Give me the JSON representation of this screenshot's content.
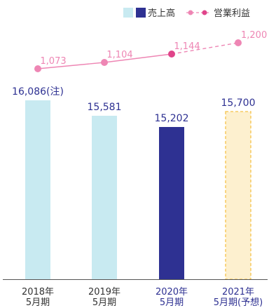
{
  "chart_data": {
    "type": "bar",
    "categories": [
      {
        "line1": "2018年",
        "line2": "5月期"
      },
      {
        "line1": "2019年",
        "line2": "5月期"
      },
      {
        "line1": "2020年",
        "line2": "5月期"
      },
      {
        "line1": "2021年",
        "line2": "5月期(予想)"
      }
    ],
    "legend": {
      "sales": "売上高",
      "profit": "営業利益"
    },
    "series": [
      {
        "name": "売上高",
        "type": "bar",
        "values": [
          16086,
          15581,
          15202,
          15700
        ],
        "labels": [
          "16,086(注)",
          "15,581",
          "15,202",
          "15,700"
        ],
        "styles": [
          "actual-light",
          "actual-light",
          "actual-dark",
          "forecast"
        ]
      },
      {
        "name": "営業利益",
        "type": "line",
        "values": [
          1073,
          1104,
          1144,
          1200
        ],
        "labels": [
          "1,073",
          "1,104",
          "1,144",
          "1,200"
        ],
        "forecast_from_index": 2
      }
    ],
    "colors": {
      "bar_light": "#c8eaf1",
      "bar_dark": "#2e3192",
      "bar_forecast_fill": "#fdf0cf",
      "bar_forecast_border": "#f5c24a",
      "line": "#ee86b4",
      "line_point_dark": "#e0448a",
      "label_blue": "#2e3192",
      "label_pink": "#ee86b4",
      "axis_text": "#333333",
      "axis_text_blue": "#2e3192"
    }
  }
}
